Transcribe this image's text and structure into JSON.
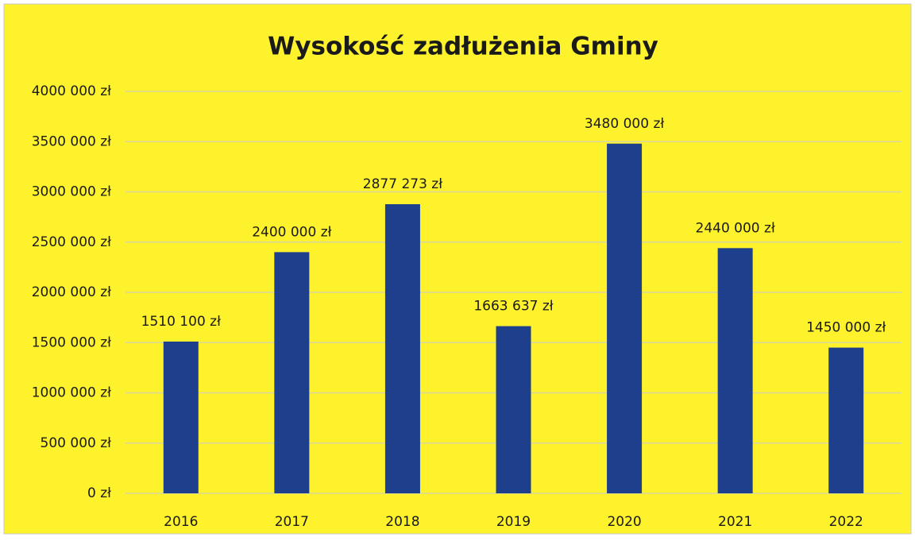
{
  "chart_data": {
    "type": "bar",
    "title": "Wysokość zadłużenia Gminy",
    "categories": [
      "2016",
      "2017",
      "2018",
      "2019",
      "2020",
      "2021",
      "2022"
    ],
    "values": [
      1510100,
      2400000,
      2877273,
      1663637,
      3480000,
      2440000,
      1450000
    ],
    "value_labels": [
      "1510 100 zł",
      "2400 000 zł",
      "2877 273 zł",
      "1663 637 zł",
      "3480 000 zł",
      "2440 000 zł",
      "1450 000 zł"
    ],
    "color": "#1d3f8c",
    "ylim": [
      0,
      4000000
    ],
    "yticks": [
      {
        "value": 0,
        "label": "0 zł"
      },
      {
        "value": 500000,
        "label": "500 000 zł"
      },
      {
        "value": 1000000,
        "label": "1000 000 zł"
      },
      {
        "value": 1500000,
        "label": "1500 000 zł"
      },
      {
        "value": 2000000,
        "label": "2000 000 zł"
      },
      {
        "value": 2500000,
        "label": "2500 000 zł"
      },
      {
        "value": 3000000,
        "label": "3000 000 zł"
      },
      {
        "value": 3500000,
        "label": "3500 000 zł"
      },
      {
        "value": 4000000,
        "label": "4000 000 zł"
      }
    ],
    "grid": true
  }
}
